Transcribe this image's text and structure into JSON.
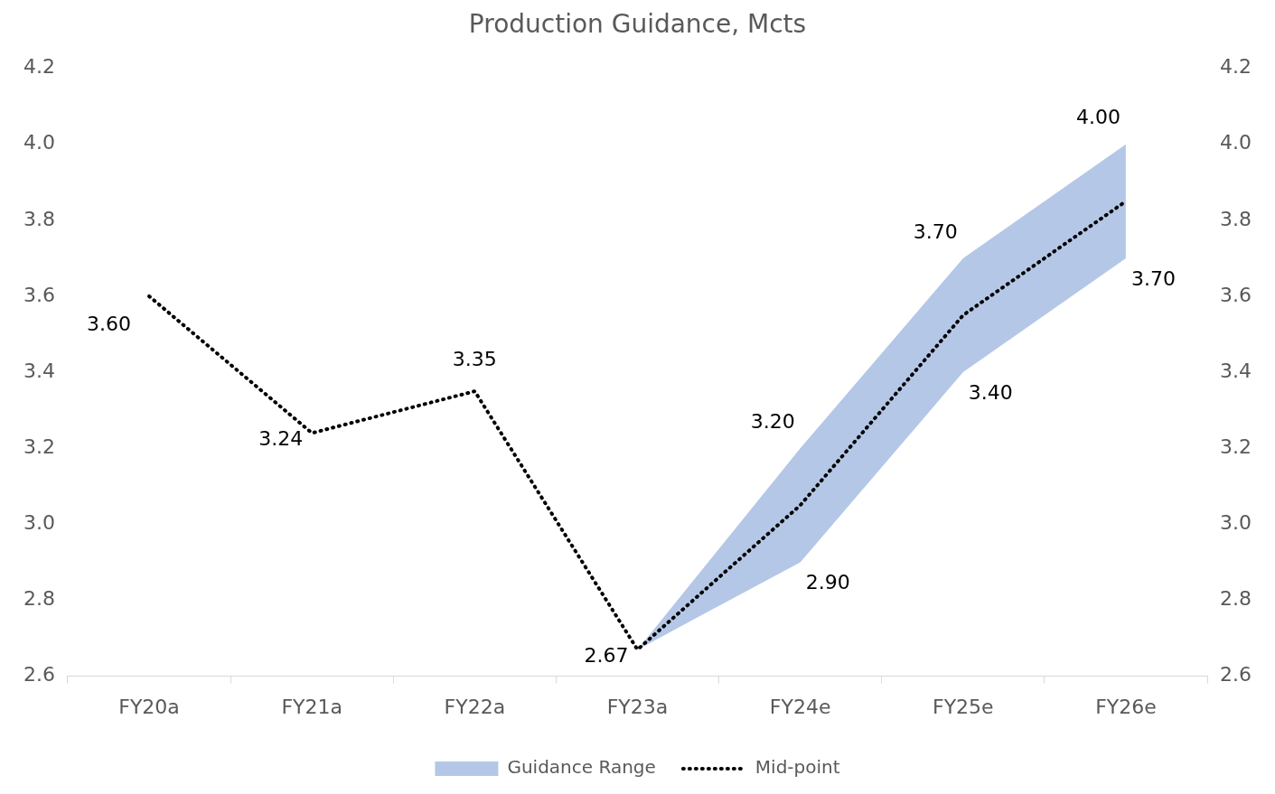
{
  "chart_data": {
    "type": "line",
    "title": "Production Guidance, Mcts",
    "categories": [
      "FY20a",
      "FY21a",
      "FY22a",
      "FY23a",
      "FY24e",
      "FY25e",
      "FY26e"
    ],
    "series": [
      {
        "name": "Guidance Range",
        "type": "area",
        "color": "#b4c7e7",
        "values": [
          null,
          null,
          null,
          null,
          null,
          null,
          null
        ],
        "lower": [
          null,
          null,
          null,
          2.67,
          2.9,
          3.4,
          3.7
        ],
        "upper": [
          null,
          null,
          null,
          2.67,
          3.2,
          3.7,
          4.0
        ]
      },
      {
        "name": "Mid-point",
        "type": "line",
        "color": "#000000",
        "values": [
          3.6,
          3.24,
          3.35,
          2.67,
          3.05,
          3.55,
          3.85
        ],
        "value_labels": [
          "3.60",
          "3.24",
          "3.35",
          "2.67",
          null,
          null,
          null
        ],
        "line_style": "dotted",
        "marker": "none"
      }
    ],
    "annotations": [
      {
        "text": "3.20",
        "x": "FY24e",
        "y": 3.2
      },
      {
        "text": "2.90",
        "x": "FY24e",
        "y": 2.9
      },
      {
        "text": "3.70",
        "x": "FY25e",
        "y": 3.7
      },
      {
        "text": "3.40",
        "x": "FY25e",
        "y": 3.4
      },
      {
        "text": "4.00",
        "x": "FY26e",
        "y": 4.0
      },
      {
        "text": "3.70",
        "x": "FY26e",
        "y": 3.7
      }
    ],
    "ylim": [
      2.6,
      4.2
    ],
    "yticks": [
      2.6,
      2.8,
      {
        "value": 3.0,
        "label": "3.0"
      },
      3.2,
      3.4,
      3.6,
      3.8,
      {
        "value": 4.0,
        "label": "4.0"
      },
      4.2
    ],
    "y2lim": [
      2.6,
      4.2
    ],
    "y2ticks": [
      2.6,
      2.8,
      {
        "value": 3.0,
        "label": "3.0"
      },
      3.2,
      3.4,
      3.6,
      3.8,
      {
        "value": 4.0,
        "label": "4.0"
      },
      4.2
    ],
    "grid": false,
    "legend": "bottom"
  }
}
